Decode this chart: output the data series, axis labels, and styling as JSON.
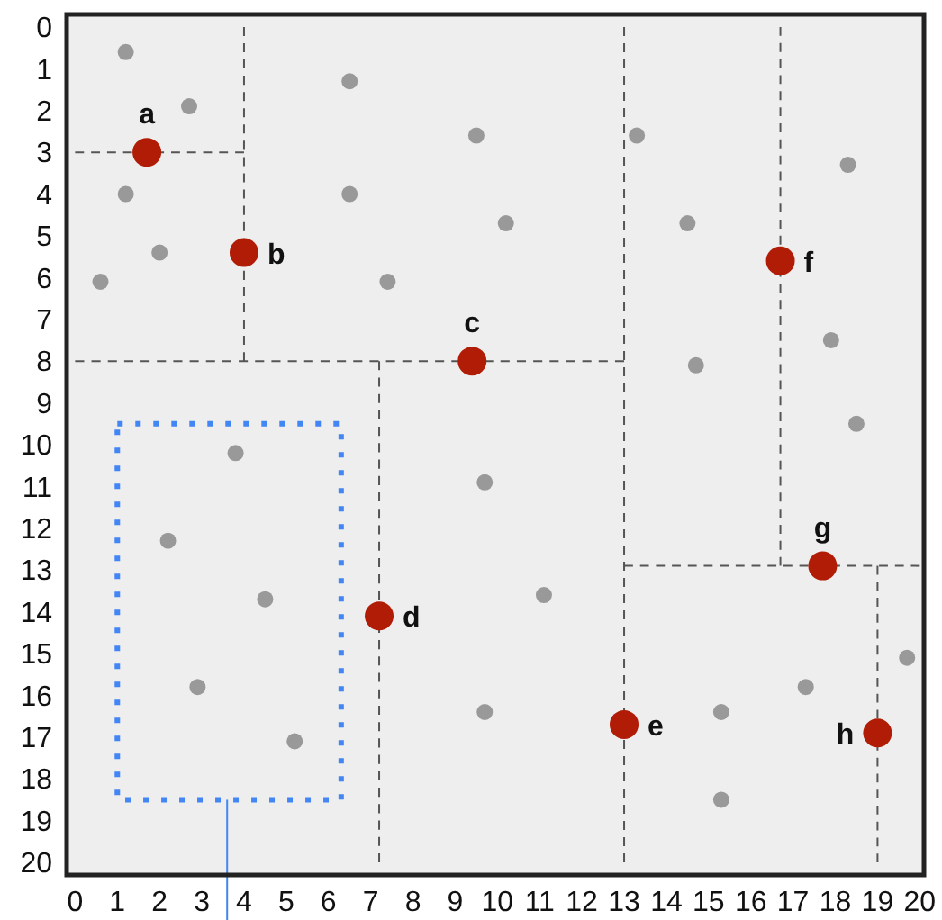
{
  "chart_data": {
    "type": "scatter",
    "xlim": [
      -0.2,
      20.1
    ],
    "ylim": [
      20.3,
      -0.3
    ],
    "xticks": [
      0,
      1,
      2,
      3,
      4,
      5,
      6,
      7,
      8,
      9,
      10,
      11,
      12,
      13,
      14,
      15,
      16,
      17,
      18,
      19,
      20
    ],
    "yticks": [
      0,
      1,
      2,
      3,
      4,
      5,
      6,
      7,
      8,
      9,
      10,
      11,
      12,
      13,
      14,
      15,
      16,
      17,
      18,
      19,
      20
    ],
    "series": [
      {
        "type": "line",
        "color": "#555555",
        "line_style": "dashed",
        "marker": "none",
        "x": [
          0,
          4
        ],
        "values": [
          3,
          3
        ]
      },
      {
        "type": "line",
        "color": "#555555",
        "line_style": "dashed",
        "marker": "none",
        "x": [
          4,
          4
        ],
        "values": [
          0,
          8
        ]
      },
      {
        "type": "line",
        "color": "#555555",
        "line_style": "dashed",
        "marker": "none",
        "x": [
          0,
          13
        ],
        "values": [
          8,
          8
        ]
      },
      {
        "type": "line",
        "color": "#555555",
        "line_style": "dashed",
        "marker": "none",
        "x": [
          7.2,
          7.2
        ],
        "values": [
          8,
          20
        ]
      },
      {
        "type": "line",
        "color": "#555555",
        "line_style": "dashed",
        "marker": "none",
        "x": [
          13,
          13
        ],
        "values": [
          0,
          20
        ]
      },
      {
        "type": "line",
        "color": "#555555",
        "line_style": "dashed",
        "marker": "none",
        "x": [
          16.7,
          16.7
        ],
        "values": [
          0,
          12.9
        ]
      },
      {
        "type": "line",
        "color": "#555555",
        "line_style": "dashed",
        "marker": "none",
        "x": [
          13,
          20
        ],
        "values": [
          12.9,
          12.9
        ]
      },
      {
        "type": "line",
        "color": "#555555",
        "line_style": "dashed",
        "marker": "none",
        "x": [
          19,
          19
        ],
        "values": [
          12.9,
          20
        ]
      },
      {
        "type": "line",
        "color": "#4285f4",
        "line_style": "solid",
        "marker": "none",
        "x": [
          3.6,
          3.6
        ],
        "values": [
          18.5,
          20.3
        ]
      },
      {
        "type": "scatter",
        "color": "#999999",
        "marker": "circle",
        "x": [
          1.2,
          2.7,
          6.5,
          9.5,
          1.2,
          6.5,
          10.2,
          2,
          0.6,
          7.4,
          13.3,
          18.3,
          14.5,
          17.9,
          14.7,
          18.5,
          3.8,
          9.7,
          2.2,
          4.5,
          2.9,
          9.7,
          5.2,
          11.1,
          19.7,
          17.3,
          15.3,
          15.3
        ],
        "values": [
          0.6,
          1.9,
          1.3,
          2.6,
          4,
          4,
          4.7,
          5.4,
          6.1,
          6.1,
          2.6,
          3.3,
          4.7,
          7.5,
          8.1,
          9.5,
          10.2,
          10.9,
          12.3,
          13.7,
          15.8,
          16.4,
          17.1,
          13.6,
          15.1,
          15.8,
          16.4,
          18.5
        ]
      },
      {
        "type": "scatter",
        "color": "#b01c05",
        "marker": "circle",
        "x": [
          1.7,
          4,
          9.4,
          7.2,
          13,
          16.7,
          17.7,
          19
        ],
        "values": [
          3,
          5.4,
          8,
          14.1,
          16.7,
          5.6,
          12.9,
          16.9
        ],
        "value_labels": [
          "a",
          "b",
          "c",
          "d",
          "e",
          "f",
          "g",
          "h"
        ]
      }
    ]
  }
}
